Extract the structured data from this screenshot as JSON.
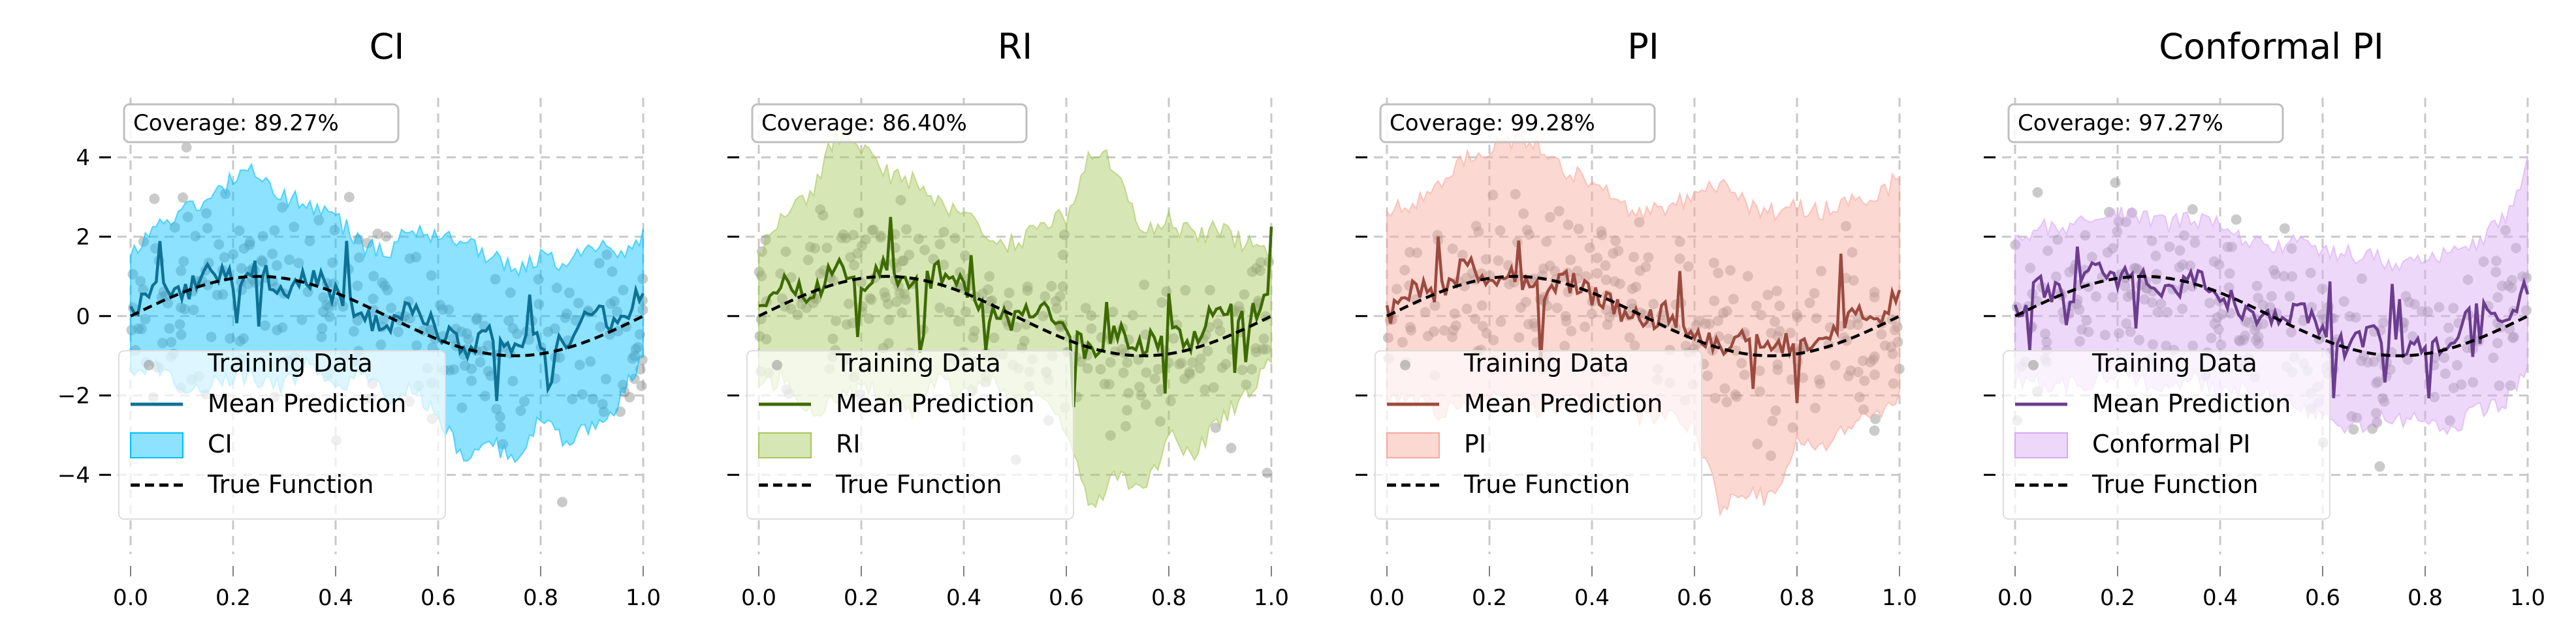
{
  "chart_data": [
    {
      "type": "line",
      "title": "CI",
      "coverage_text": "Coverage: 89.27%",
      "band_label": "CI",
      "color": "#0e7196",
      "band_color": "#00bfff",
      "xlim": [
        0.0,
        1.0
      ],
      "ylim": [
        -6.0,
        5.5
      ],
      "xticks": [
        "0.0",
        "0.2",
        "0.4",
        "0.6",
        "0.8",
        "1.0"
      ],
      "yticks": [
        "4",
        "2",
        "0",
        "−2",
        "−4"
      ],
      "legend": [
        "Training Data",
        "Mean Prediction",
        "CI",
        "True Function"
      ],
      "x": [
        0.0,
        0.05,
        0.1,
        0.15,
        0.2,
        0.25,
        0.3,
        0.35,
        0.4,
        0.45,
        0.5,
        0.55,
        0.6,
        0.65,
        0.7,
        0.75,
        0.8,
        0.85,
        0.9,
        0.95,
        1.0
      ],
      "mean": [
        0.0,
        0.8,
        0.5,
        1.2,
        0.9,
        1.3,
        0.5,
        1.0,
        0.6,
        0.0,
        -0.2,
        0.3,
        -0.4,
        -0.8,
        -0.5,
        -0.9,
        -0.6,
        -0.8,
        0.2,
        -0.3,
        0.7
      ],
      "lower": [
        -1.5,
        -1.2,
        -2.0,
        -1.8,
        -1.5,
        -1.6,
        -1.8,
        -1.2,
        -1.9,
        -1.5,
        -2.0,
        -1.8,
        -2.5,
        -3.5,
        -3.0,
        -3.8,
        -2.5,
        -3.2,
        -2.8,
        -2.2,
        -1.0
      ],
      "upper": [
        1.5,
        2.3,
        2.6,
        3.0,
        3.4,
        3.7,
        3.0,
        2.8,
        2.5,
        1.8,
        1.6,
        2.2,
        2.0,
        1.8,
        1.5,
        1.2,
        1.5,
        1.3,
        1.9,
        1.6,
        2.0
      ]
    },
    {
      "type": "line",
      "title": "RI",
      "coverage_text": "Coverage: 86.40%",
      "band_label": "RI",
      "color": "#3d6b00",
      "band_color": "#a6c85a",
      "xlim": [
        0.0,
        1.0
      ],
      "ylim": [
        -6.0,
        5.5
      ],
      "xticks": [
        "0.0",
        "0.2",
        "0.4",
        "0.6",
        "0.8",
        "1.0"
      ],
      "yticks": [
        "4",
        "2",
        "0",
        "−2",
        "−4"
      ],
      "legend": [
        "Training Data",
        "Mean Prediction",
        "RI",
        "True Function"
      ],
      "x": [
        0.0,
        0.05,
        0.1,
        0.15,
        0.2,
        0.25,
        0.3,
        0.35,
        0.4,
        0.45,
        0.5,
        0.55,
        0.6,
        0.65,
        0.7,
        0.75,
        0.8,
        0.85,
        0.9,
        0.95,
        1.0
      ],
      "mean": [
        0.0,
        0.9,
        0.3,
        1.4,
        0.8,
        1.2,
        0.6,
        1.1,
        0.7,
        0.1,
        -0.1,
        0.2,
        -0.5,
        -0.9,
        -0.4,
        -0.7,
        -0.5,
        -0.6,
        0.3,
        -0.2,
        0.8
      ],
      "lower": [
        -1.8,
        -1.5,
        -2.5,
        -2.2,
        -1.8,
        -2.0,
        -2.4,
        -1.5,
        -2.0,
        -1.6,
        -2.2,
        -2.0,
        -3.0,
        -4.8,
        -4.0,
        -4.5,
        -3.0,
        -3.5,
        -2.6,
        -2.0,
        -1.2
      ],
      "upper": [
        1.6,
        2.5,
        3.0,
        4.6,
        4.2,
        3.6,
        3.4,
        2.8,
        2.6,
        2.0,
        1.8,
        2.4,
        2.5,
        4.2,
        3.8,
        2.0,
        2.4,
        2.0,
        2.2,
        1.8,
        1.6
      ]
    },
    {
      "type": "line",
      "title": "PI",
      "coverage_text": "Coverage: 99.28%",
      "band_label": "PI",
      "color": "#9c4a3f",
      "band_color": "#f9a89c",
      "xlim": [
        0.0,
        1.0
      ],
      "ylim": [
        -6.0,
        5.5
      ],
      "xticks": [
        "0.0",
        "0.2",
        "0.4",
        "0.6",
        "0.8",
        "1.0"
      ],
      "yticks": [
        "4",
        "2",
        "0",
        "−2",
        "−4"
      ],
      "legend": [
        "Training Data",
        "Mean Prediction",
        "PI",
        "True Function"
      ],
      "x": [
        0.0,
        0.05,
        0.1,
        0.15,
        0.2,
        0.25,
        0.3,
        0.35,
        0.4,
        0.45,
        0.5,
        0.55,
        0.6,
        0.65,
        0.7,
        0.75,
        0.8,
        0.85,
        0.9,
        0.95,
        1.0
      ],
      "mean": [
        0.0,
        0.7,
        0.5,
        1.3,
        0.9,
        1.1,
        0.6,
        0.9,
        0.5,
        0.2,
        -0.2,
        0.1,
        -0.4,
        -0.7,
        -0.5,
        -0.8,
        -0.6,
        -0.7,
        0.1,
        -0.1,
        0.6
      ],
      "lower": [
        -2.2,
        -2.0,
        -2.4,
        -2.3,
        -2.0,
        -2.2,
        -2.4,
        -2.1,
        -2.3,
        -2.2,
        -2.6,
        -2.5,
        -2.8,
        -4.8,
        -4.5,
        -4.6,
        -3.2,
        -3.4,
        -2.8,
        -2.5,
        -2.0
      ],
      "upper": [
        2.6,
        2.8,
        3.2,
        4.0,
        4.2,
        4.4,
        4.3,
        3.6,
        3.4,
        2.8,
        2.6,
        2.8,
        3.0,
        3.4,
        2.8,
        2.6,
        2.8,
        2.6,
        3.0,
        2.8,
        3.6
      ]
    },
    {
      "type": "line",
      "title": "Conformal PI",
      "coverage_text": "Coverage: 97.27%",
      "band_label": "Conformal PI",
      "color": "#6b3d8f",
      "band_color": "#d9a9f5",
      "xlim": [
        0.0,
        1.0
      ],
      "ylim": [
        -6.0,
        5.5
      ],
      "xticks": [
        "0.0",
        "0.2",
        "0.4",
        "0.6",
        "0.8",
        "1.0"
      ],
      "yticks": [
        "4",
        "2",
        "0",
        "−2",
        "−4"
      ],
      "legend": [
        "Training Data",
        "Mean Prediction",
        "Conformal PI",
        "True Function"
      ],
      "x": [
        0.0,
        0.05,
        0.1,
        0.15,
        0.2,
        0.25,
        0.3,
        0.35,
        0.4,
        0.45,
        0.5,
        0.55,
        0.6,
        0.65,
        0.7,
        0.75,
        0.8,
        0.85,
        0.9,
        0.95,
        1.0
      ],
      "mean": [
        0.0,
        0.8,
        0.4,
        1.2,
        0.9,
        1.2,
        0.5,
        1.0,
        0.6,
        0.1,
        -0.2,
        0.2,
        -0.4,
        -0.8,
        -0.5,
        -0.8,
        -0.6,
        -0.7,
        0.2,
        -0.2,
        0.7
      ],
      "lower": [
        -1.6,
        -1.7,
        -1.8,
        -1.6,
        -1.5,
        -1.7,
        -1.8,
        -1.6,
        -1.9,
        -1.8,
        -2.0,
        -2.1,
        -2.6,
        -2.8,
        -2.6,
        -2.7,
        -2.5,
        -2.8,
        -2.4,
        -2.2,
        -1.4
      ],
      "upper": [
        2.0,
        2.2,
        2.3,
        2.4,
        2.6,
        2.5,
        2.3,
        2.4,
        2.3,
        2.0,
        1.8,
        1.9,
        1.7,
        1.6,
        1.5,
        1.3,
        1.5,
        1.6,
        1.9,
        2.4,
        3.8
      ]
    }
  ]
}
